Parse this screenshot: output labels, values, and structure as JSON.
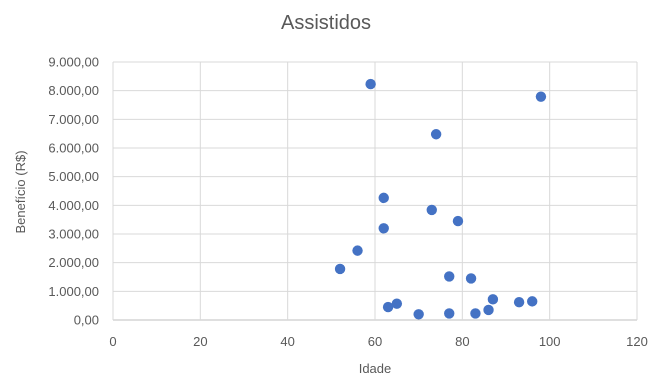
{
  "chart_data": {
    "type": "scatter",
    "title": "Assistidos",
    "xlabel": "Idade",
    "ylabel": "Benefício (R$)",
    "xlim": [
      0,
      120
    ],
    "ylim": [
      0,
      9000
    ],
    "x_ticks": [
      "0",
      "20",
      "40",
      "60",
      "80",
      "100",
      "120"
    ],
    "y_ticks": [
      "0,00",
      "1.000,00",
      "2.000,00",
      "3.000,00",
      "4.000,00",
      "5.000,00",
      "6.000,00",
      "7.000,00",
      "8.000,00",
      "9.000,00"
    ],
    "grid": true,
    "legend": "none",
    "color": "#4472c4",
    "points": [
      {
        "x": 52,
        "y": 1780
      },
      {
        "x": 56,
        "y": 2420
      },
      {
        "x": 59,
        "y": 8230
      },
      {
        "x": 62,
        "y": 4260
      },
      {
        "x": 62,
        "y": 3200
      },
      {
        "x": 63,
        "y": 450
      },
      {
        "x": 65,
        "y": 570
      },
      {
        "x": 70,
        "y": 200
      },
      {
        "x": 73,
        "y": 3840
      },
      {
        "x": 74,
        "y": 6480
      },
      {
        "x": 77,
        "y": 1520
      },
      {
        "x": 77,
        "y": 230
      },
      {
        "x": 79,
        "y": 3450
      },
      {
        "x": 82,
        "y": 1450
      },
      {
        "x": 83,
        "y": 230
      },
      {
        "x": 86,
        "y": 350
      },
      {
        "x": 87,
        "y": 720
      },
      {
        "x": 93,
        "y": 620
      },
      {
        "x": 96,
        "y": 650
      },
      {
        "x": 98,
        "y": 7790
      }
    ]
  }
}
